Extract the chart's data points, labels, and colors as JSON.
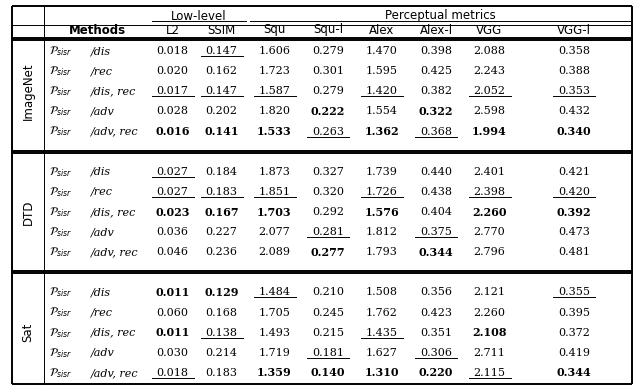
{
  "title_low": "Low-level",
  "title_perceptual": "Perceptual metrics",
  "col_headers": [
    "Methods",
    "L2",
    "SSIM",
    "Squ",
    "Squ-l",
    "Alex",
    "Alex-l",
    "VGG",
    "VGG-l"
  ],
  "row_groups": [
    {
      "group_label": "ImageNet",
      "rows": [
        {
          "method_math": "$\\mathcal{P}_{sisr}$",
          "method_text": "/dis",
          "values": [
            "0.018",
            "0.147",
            "1.606",
            "0.279",
            "1.470",
            "0.398",
            "2.088",
            "0.358"
          ],
          "bold": [
            false,
            false,
            false,
            false,
            false,
            false,
            false,
            false
          ],
          "underline": [
            false,
            true,
            false,
            false,
            false,
            false,
            false,
            false
          ]
        },
        {
          "method_math": "$\\mathcal{P}_{sisr}$",
          "method_text": "/rec",
          "values": [
            "0.020",
            "0.162",
            "1.723",
            "0.301",
            "1.595",
            "0.425",
            "2.243",
            "0.388"
          ],
          "bold": [
            false,
            false,
            false,
            false,
            false,
            false,
            false,
            false
          ],
          "underline": [
            false,
            false,
            false,
            false,
            false,
            false,
            false,
            false
          ]
        },
        {
          "method_math": "$\\mathcal{P}_{sisr}$",
          "method_text": "/dis, rec",
          "values": [
            "0.017",
            "0.147",
            "1.587",
            "0.279",
            "1.420",
            "0.382",
            "2.052",
            "0.353"
          ],
          "bold": [
            false,
            false,
            false,
            false,
            false,
            false,
            false,
            false
          ],
          "underline": [
            true,
            true,
            true,
            false,
            true,
            false,
            true,
            true
          ]
        },
        {
          "method_math": "$\\mathcal{P}_{sisr}$",
          "method_text": "/adv",
          "values": [
            "0.028",
            "0.202",
            "1.820",
            "0.222",
            "1.554",
            "0.322",
            "2.598",
            "0.432"
          ],
          "bold": [
            false,
            false,
            false,
            true,
            false,
            true,
            false,
            false
          ],
          "underline": [
            false,
            false,
            false,
            false,
            false,
            false,
            false,
            false
          ]
        },
        {
          "method_math": "$\\mathcal{P}_{sisr}$",
          "method_text": "/adv, rec",
          "values": [
            "0.016",
            "0.141",
            "1.533",
            "0.263",
            "1.362",
            "0.368",
            "1.994",
            "0.340"
          ],
          "bold": [
            true,
            true,
            true,
            false,
            true,
            false,
            true,
            true
          ],
          "underline": [
            false,
            false,
            false,
            true,
            false,
            true,
            false,
            false
          ]
        }
      ]
    },
    {
      "group_label": "DTD",
      "rows": [
        {
          "method_math": "$\\mathcal{P}_{sisr}$",
          "method_text": "/dis",
          "values": [
            "0.027",
            "0.184",
            "1.873",
            "0.327",
            "1.739",
            "0.440",
            "2.401",
            "0.421"
          ],
          "bold": [
            false,
            false,
            false,
            false,
            false,
            false,
            false,
            false
          ],
          "underline": [
            true,
            false,
            false,
            false,
            false,
            false,
            false,
            false
          ]
        },
        {
          "method_math": "$\\mathcal{P}_{sisr}$",
          "method_text": "/rec",
          "values": [
            "0.027",
            "0.183",
            "1.851",
            "0.320",
            "1.726",
            "0.438",
            "2.398",
            "0.420"
          ],
          "bold": [
            false,
            false,
            false,
            false,
            false,
            false,
            false,
            false
          ],
          "underline": [
            true,
            true,
            true,
            false,
            true,
            false,
            true,
            true
          ]
        },
        {
          "method_math": "$\\mathcal{P}_{sisr}$",
          "method_text": "/dis, rec",
          "values": [
            "0.023",
            "0.167",
            "1.703",
            "0.292",
            "1.576",
            "0.404",
            "2.260",
            "0.392"
          ],
          "bold": [
            true,
            true,
            true,
            false,
            true,
            false,
            true,
            true
          ],
          "underline": [
            false,
            false,
            false,
            false,
            false,
            false,
            false,
            false
          ]
        },
        {
          "method_math": "$\\mathcal{P}_{sisr}$",
          "method_text": "/adv",
          "values": [
            "0.036",
            "0.227",
            "2.077",
            "0.281",
            "1.812",
            "0.375",
            "2.770",
            "0.473"
          ],
          "bold": [
            false,
            false,
            false,
            false,
            false,
            false,
            false,
            false
          ],
          "underline": [
            false,
            false,
            false,
            true,
            false,
            true,
            false,
            false
          ]
        },
        {
          "method_math": "$\\mathcal{P}_{sisr}$",
          "method_text": "/adv, rec",
          "values": [
            "0.046",
            "0.236",
            "2.089",
            "0.277",
            "1.793",
            "0.344",
            "2.796",
            "0.481"
          ],
          "bold": [
            false,
            false,
            false,
            true,
            false,
            true,
            false,
            false
          ],
          "underline": [
            false,
            false,
            false,
            false,
            false,
            false,
            false,
            false
          ]
        }
      ]
    },
    {
      "group_label": "Sat",
      "rows": [
        {
          "method_math": "$\\mathcal{P}_{sisr}$",
          "method_text": "/dis",
          "values": [
            "0.011",
            "0.129",
            "1.484",
            "0.210",
            "1.508",
            "0.356",
            "2.121",
            "0.355"
          ],
          "bold": [
            true,
            true,
            false,
            false,
            false,
            false,
            false,
            false
          ],
          "underline": [
            false,
            false,
            true,
            false,
            false,
            false,
            false,
            true
          ]
        },
        {
          "method_math": "$\\mathcal{P}_{sisr}$",
          "method_text": "/rec",
          "values": [
            "0.060",
            "0.168",
            "1.705",
            "0.245",
            "1.762",
            "0.423",
            "2.260",
            "0.395"
          ],
          "bold": [
            false,
            false,
            false,
            false,
            false,
            false,
            false,
            false
          ],
          "underline": [
            false,
            false,
            false,
            false,
            false,
            false,
            false,
            false
          ]
        },
        {
          "method_math": "$\\mathcal{P}_{sisr}$",
          "method_text": "/dis, rec",
          "values": [
            "0.011",
            "0.138",
            "1.493",
            "0.215",
            "1.435",
            "0.351",
            "2.108",
            "0.372"
          ],
          "bold": [
            true,
            false,
            false,
            false,
            false,
            false,
            true,
            false
          ],
          "underline": [
            false,
            true,
            false,
            false,
            true,
            false,
            false,
            false
          ]
        },
        {
          "method_math": "$\\mathcal{P}_{sisr}$",
          "method_text": "/adv",
          "values": [
            "0.030",
            "0.214",
            "1.719",
            "0.181",
            "1.627",
            "0.306",
            "2.711",
            "0.419"
          ],
          "bold": [
            false,
            false,
            false,
            false,
            false,
            false,
            false,
            false
          ],
          "underline": [
            false,
            false,
            false,
            true,
            false,
            true,
            false,
            false
          ]
        },
        {
          "method_math": "$\\mathcal{P}_{sisr}$",
          "method_text": "/adv, rec",
          "values": [
            "0.018",
            "0.183",
            "1.359",
            "0.140",
            "1.310",
            "0.220",
            "2.115",
            "0.344"
          ],
          "bold": [
            false,
            false,
            true,
            true,
            true,
            true,
            false,
            true
          ],
          "underline": [
            true,
            false,
            false,
            false,
            false,
            false,
            true,
            false
          ]
        }
      ]
    }
  ]
}
